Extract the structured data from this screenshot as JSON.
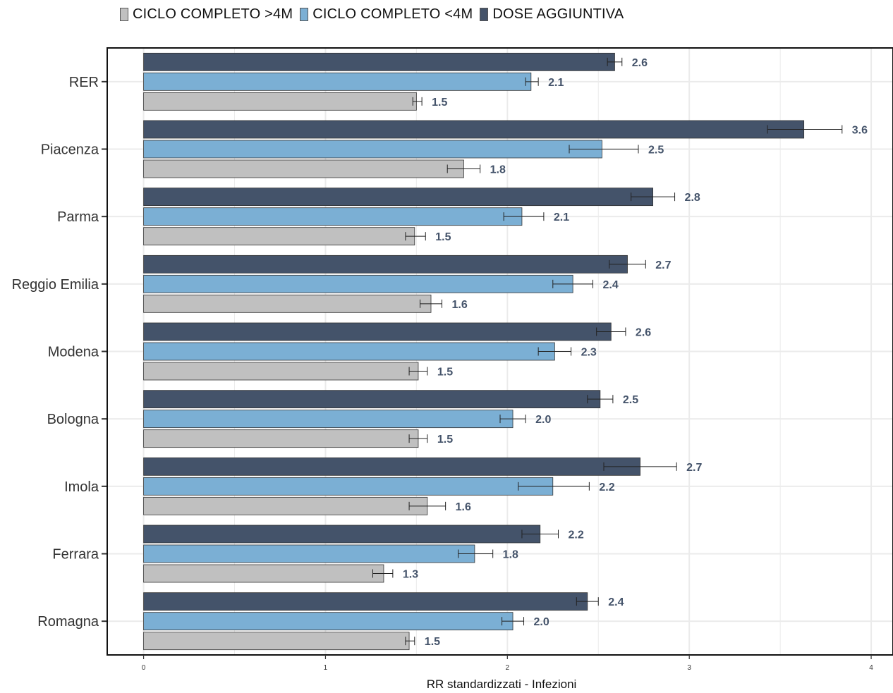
{
  "chart_data": {
    "type": "bar",
    "orientation": "horizontal",
    "xlabel": "RR standardizzati - Infezioni",
    "xlim": [
      -0.2,
      4.12
    ],
    "xticks": [
      0,
      1,
      2,
      3,
      4
    ],
    "grid": true,
    "legend_position": "top",
    "categories": [
      "RER",
      "Piacenza",
      "Parma",
      "Reggio Emilia",
      "Modena",
      "Bologna",
      "Imola",
      "Ferrara",
      "Romagna"
    ],
    "series": [
      {
        "name": "DOSE AGGIUNTIVA",
        "color": "#44536a",
        "values": [
          2.59,
          3.63,
          2.8,
          2.66,
          2.57,
          2.51,
          2.73,
          2.18,
          2.44
        ],
        "labels": [
          "2.6",
          "3.6",
          "2.8",
          "2.7",
          "2.6",
          "2.5",
          "2.7",
          "2.2",
          "2.4"
        ],
        "err_low": [
          2.55,
          3.43,
          2.68,
          2.56,
          2.49,
          2.44,
          2.53,
          2.08,
          2.38
        ],
        "err_high": [
          2.63,
          3.84,
          2.92,
          2.76,
          2.65,
          2.58,
          2.93,
          2.28,
          2.5
        ]
      },
      {
        "name": "CICLO COMPLETO <4M",
        "color": "#7bafd4",
        "values": [
          2.13,
          2.52,
          2.08,
          2.36,
          2.26,
          2.03,
          2.25,
          1.82,
          2.03
        ],
        "labels": [
          "2.1",
          "2.5",
          "2.1",
          "2.4",
          "2.3",
          "2.0",
          "2.2",
          "1.8",
          "2.0"
        ],
        "err_low": [
          2.1,
          2.34,
          1.98,
          2.25,
          2.17,
          1.96,
          2.06,
          1.73,
          1.97
        ],
        "err_high": [
          2.17,
          2.72,
          2.2,
          2.47,
          2.35,
          2.1,
          2.45,
          1.92,
          2.09
        ]
      },
      {
        "name": "CICLO COMPLETO >4M",
        "color": "#c0c0c0",
        "values": [
          1.5,
          1.76,
          1.49,
          1.58,
          1.51,
          1.51,
          1.56,
          1.32,
          1.46
        ],
        "labels": [
          "1.5",
          "1.8",
          "1.5",
          "1.6",
          "1.5",
          "1.5",
          "1.6",
          "1.3",
          "1.5"
        ],
        "err_low": [
          1.48,
          1.67,
          1.44,
          1.52,
          1.46,
          1.46,
          1.46,
          1.26,
          1.44
        ],
        "err_high": [
          1.53,
          1.85,
          1.55,
          1.64,
          1.56,
          1.56,
          1.66,
          1.37,
          1.49
        ]
      }
    ]
  },
  "legend": {
    "items": [
      {
        "label": "CICLO COMPLETO >4M",
        "color": "#c0c0c0"
      },
      {
        "label": "CICLO COMPLETO <4M",
        "color": "#7bafd4"
      },
      {
        "label": "DOSE AGGIUNTIVA",
        "color": "#44536a"
      }
    ]
  }
}
